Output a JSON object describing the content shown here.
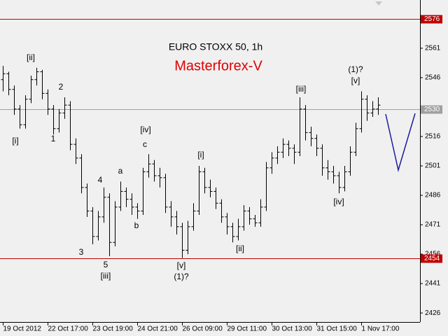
{
  "chart_data": {
    "type": "ohlc",
    "title": "EURO STOXX 50, 1h",
    "subtitle": "Masterforex-V",
    "color": "#000000",
    "bars": [
      [
        2545,
        2552,
        2539,
        2548
      ],
      [
        2548,
        2549,
        2537,
        2540
      ],
      [
        2540,
        2542,
        2527,
        2530
      ],
      [
        2530,
        2532,
        2520,
        2522
      ],
      [
        2522,
        2537,
        2520,
        2535
      ],
      [
        2535,
        2547,
        2533,
        2545
      ],
      [
        2545,
        2551,
        2542,
        2549
      ],
      [
        2549,
        2550,
        2535,
        2538
      ],
      [
        2538,
        2540,
        2527,
        2530
      ],
      [
        2530,
        2532,
        2517,
        2520
      ],
      [
        2520,
        2530,
        2518,
        2528
      ],
      [
        2528,
        2536,
        2525,
        2532
      ],
      [
        2532,
        2534,
        2509,
        2512
      ],
      [
        2512,
        2515,
        2502,
        2505
      ],
      [
        2505,
        2507,
        2487,
        2490
      ],
      [
        2490,
        2492,
        2475,
        2478
      ],
      [
        2478,
        2480,
        2461,
        2465
      ],
      [
        2465,
        2478,
        2463,
        2475
      ],
      [
        2475,
        2490,
        2472,
        2485
      ],
      [
        2485,
        2487,
        2455,
        2462
      ],
      [
        2462,
        2483,
        2460,
        2480
      ],
      [
        2480,
        2493,
        2478,
        2488
      ],
      [
        2488,
        2490,
        2480,
        2484
      ],
      [
        2484,
        2487,
        2476,
        2480
      ],
      [
        2480,
        2482,
        2474,
        2478
      ],
      [
        2478,
        2500,
        2476,
        2498
      ],
      [
        2498,
        2507,
        2495,
        2502
      ],
      [
        2502,
        2504,
        2493,
        2496
      ],
      [
        2496,
        2500,
        2490,
        2495
      ],
      [
        2495,
        2497,
        2477,
        2480
      ],
      [
        2480,
        2483,
        2470,
        2475
      ],
      [
        2475,
        2478,
        2466,
        2470
      ],
      [
        2470,
        2472,
        2454,
        2458
      ],
      [
        2458,
        2473,
        2456,
        2470
      ],
      [
        2470,
        2482,
        2468,
        2478
      ],
      [
        2478,
        2501,
        2476,
        2498
      ],
      [
        2498,
        2500,
        2487,
        2490
      ],
      [
        2490,
        2494,
        2485,
        2488
      ],
      [
        2488,
        2490,
        2479,
        2482
      ],
      [
        2482,
        2484,
        2472,
        2475
      ],
      [
        2475,
        2477,
        2466,
        2470
      ],
      [
        2470,
        2472,
        2462,
        2465
      ],
      [
        2465,
        2474,
        2463,
        2470
      ],
      [
        2470,
        2481,
        2468,
        2478
      ],
      [
        2478,
        2480,
        2471,
        2474
      ],
      [
        2474,
        2476,
        2470,
        2472
      ],
      [
        2472,
        2484,
        2470,
        2480
      ],
      [
        2480,
        2503,
        2478,
        2500
      ],
      [
        2500,
        2508,
        2497,
        2505
      ],
      [
        2505,
        2511,
        2502,
        2508
      ],
      [
        2508,
        2515,
        2505,
        2512
      ],
      [
        2512,
        2514,
        2506,
        2510
      ],
      [
        2510,
        2512,
        2502,
        2508
      ],
      [
        2508,
        2536,
        2506,
        2530
      ],
      [
        2530,
        2532,
        2514,
        2518
      ],
      [
        2518,
        2521,
        2511,
        2515
      ],
      [
        2515,
        2517,
        2506,
        2510
      ],
      [
        2510,
        2512,
        2496,
        2500
      ],
      [
        2500,
        2504,
        2494,
        2498
      ],
      [
        2498,
        2501,
        2492,
        2496
      ],
      [
        2496,
        2498,
        2487,
        2490
      ],
      [
        2490,
        2501,
        2488,
        2498
      ],
      [
        2498,
        2511,
        2496,
        2508
      ],
      [
        2508,
        2523,
        2506,
        2520
      ],
      [
        2520,
        2539,
        2518,
        2535
      ],
      [
        2535,
        2537,
        2524,
        2528
      ],
      [
        2528,
        2534,
        2526,
        2530
      ],
      [
        2530,
        2536,
        2527,
        2532
      ]
    ],
    "xticks": [
      {
        "value": 0,
        "label": "19 Oct 2012"
      },
      {
        "value": 8,
        "label": "22 Oct 17:00"
      },
      {
        "value": 16,
        "label": "23 Oct 19:00"
      },
      {
        "value": 24,
        "label": "24 Oct 21:00"
      },
      {
        "value": 32,
        "label": "26 Oct 09:00"
      },
      {
        "value": 40,
        "label": "29 Oct 11:00"
      },
      {
        "value": 48,
        "label": "30 Oct 13:00"
      },
      {
        "value": 56,
        "label": "31 Oct 15:00"
      },
      {
        "value": 64,
        "label": "1 Nov 17:00"
      }
    ],
    "ylim": [
      2421.4,
      2585.6
    ],
    "yticks": [
      2561,
      2546,
      2516,
      2501,
      2486,
      2471,
      2456,
      2441,
      2426
    ],
    "levels": [
      {
        "value": 2576,
        "color": "#c00000"
      },
      {
        "value": 2530,
        "color": "#a0a0a0"
      },
      {
        "value": 2454,
        "color": "#c00000"
      }
    ],
    "annotations": [
      "[i]",
      "[ii]",
      "1",
      "2",
      "[iv]",
      "c",
      "a",
      "4",
      "b",
      "3",
      "5",
      "[iii]",
      "[i]",
      "[v]",
      "(1)?",
      "[ii]",
      "[iii]",
      "[v]",
      "(1)?",
      "[iv]"
    ]
  }
}
